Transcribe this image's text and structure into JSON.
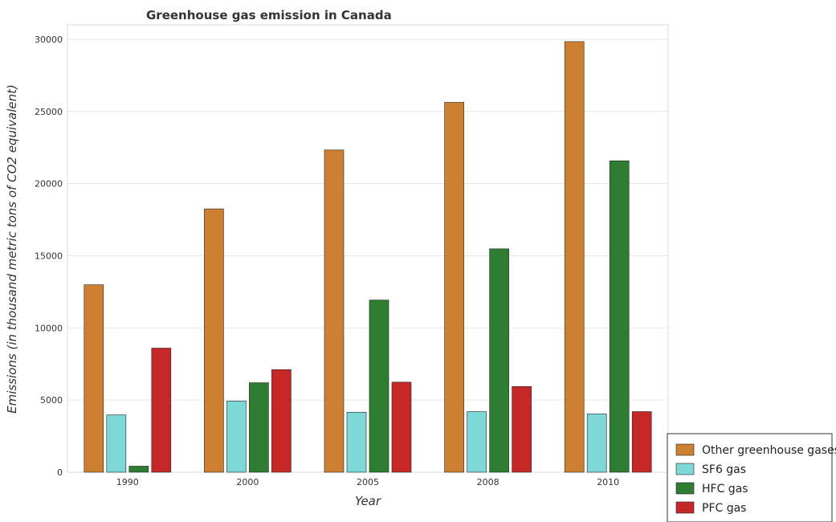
{
  "chart_data": {
    "type": "bar",
    "title": "Greenhouse gas emission in Canada",
    "xlabel": "Year",
    "ylabel": "Emissions (in thousand metric tons of CO2 equivalent)",
    "categories": [
      "1990",
      "2000",
      "2005",
      "2008",
      "2010"
    ],
    "ylim": [
      0,
      31000
    ],
    "yticks": [
      0,
      5000,
      10000,
      15000,
      20000,
      25000,
      30000
    ],
    "grid": true,
    "legend_position": "bottom-right",
    "series": [
      {
        "name": "Other greenhouse gases",
        "color": "#cd7f32",
        "values": [
          12990,
          18250,
          22330,
          25630,
          29840
        ]
      },
      {
        "name": "SF6 gas",
        "color": "#7fd8d8",
        "values": [
          3970,
          4930,
          4160,
          4200,
          4040
        ]
      },
      {
        "name": "HFC gas",
        "color": "#2e7d32",
        "values": [
          420,
          6200,
          11930,
          15480,
          21580
        ]
      },
      {
        "name": "PFC gas",
        "color": "#c62828",
        "values": [
          8600,
          7110,
          6240,
          5940,
          4200
        ]
      }
    ]
  }
}
